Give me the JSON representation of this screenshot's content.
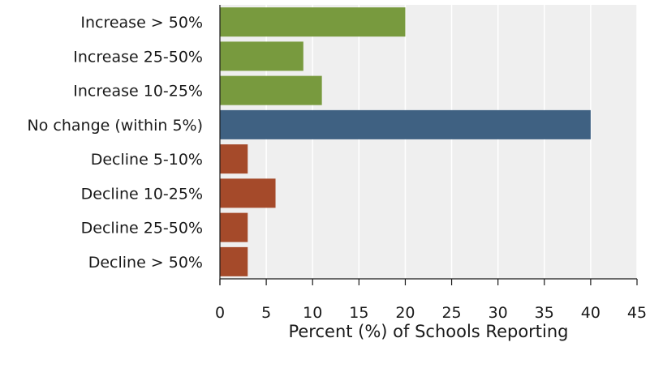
{
  "chart_data": {
    "type": "bar",
    "orientation": "horizontal",
    "categories": [
      "Increase > 50%",
      "Increase 25-50%",
      "Increase 10-25%",
      "No change (within 5%)",
      "Decline 5-10%",
      "Decline 10-25%",
      "Decline 25-50%",
      "Decline > 50%"
    ],
    "values": [
      20,
      9,
      11,
      40,
      3,
      6,
      3,
      3
    ],
    "bar_colors": [
      "#789a3e",
      "#789a3e",
      "#789a3e",
      "#3f6182",
      "#a54a2a",
      "#a54a2a",
      "#a54a2a",
      "#a54a2a"
    ],
    "xlabel": "Percent (%) of Schools Reporting",
    "ylabel": "",
    "title": "",
    "xlim": [
      0,
      45
    ],
    "xticks": [
      0,
      5,
      10,
      15,
      20,
      25,
      30,
      35,
      40,
      45
    ],
    "grid": "vertical",
    "background_color": "#efefef",
    "legend": "none"
  }
}
